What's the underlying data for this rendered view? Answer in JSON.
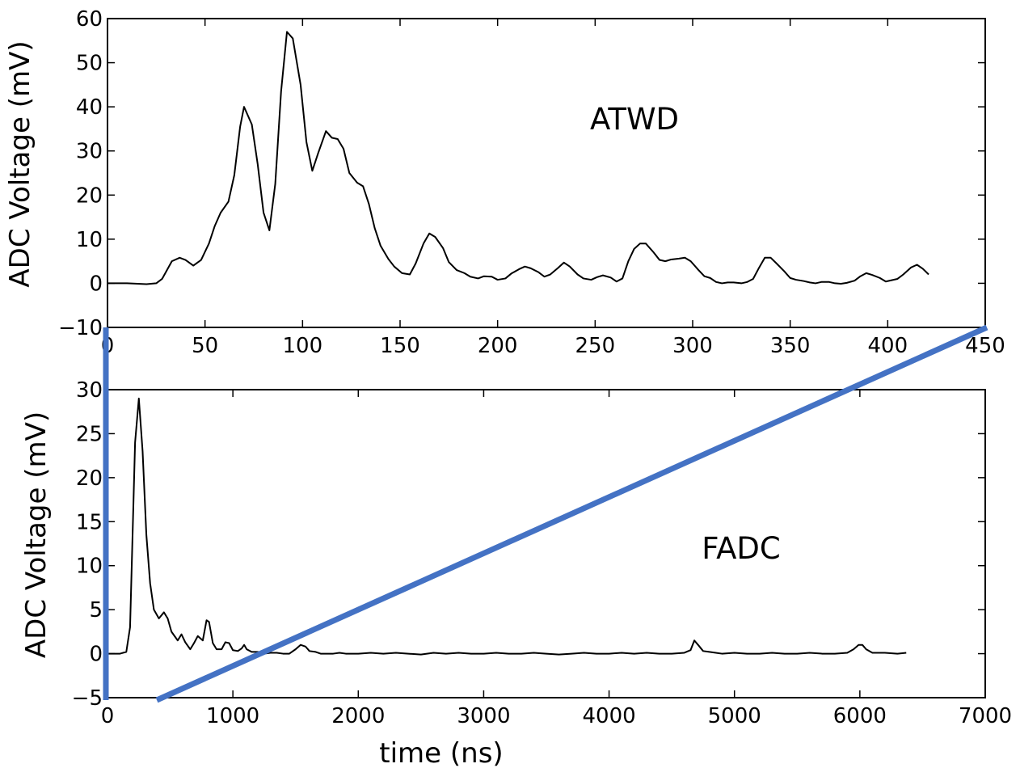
{
  "chart_data": [
    {
      "type": "line",
      "annotation": "ATWD",
      "ylabel": "ADC Voltage (mV)",
      "x": [
        0,
        10,
        20,
        25,
        28,
        33,
        37,
        40,
        44,
        48,
        52,
        55,
        58,
        62,
        65,
        68,
        70,
        74,
        77,
        80,
        83,
        86,
        89,
        92,
        95,
        99,
        102,
        105,
        108,
        112,
        115,
        118,
        121,
        124,
        128,
        131,
        134,
        137,
        140,
        144,
        147,
        151,
        155,
        158,
        162,
        165,
        168,
        172,
        175,
        179,
        183,
        186,
        190,
        193,
        197,
        200,
        204,
        207,
        211,
        214,
        217,
        221,
        224,
        227,
        231,
        234,
        237,
        241,
        244,
        248,
        251,
        254,
        258,
        261,
        264,
        267,
        270,
        273,
        276,
        280,
        283,
        286,
        289,
        293,
        296,
        299,
        303,
        306,
        309,
        312,
        315,
        318,
        321,
        325,
        328,
        331,
        334,
        337,
        340,
        343,
        347,
        350,
        353,
        357,
        360,
        363,
        366,
        370,
        373,
        376,
        379,
        383,
        386,
        389,
        392,
        396,
        399,
        402,
        405,
        408,
        412,
        415,
        418,
        421
      ],
      "series": [
        {
          "color": "#000000",
          "values": [
            0,
            0,
            -0.2,
            0,
            1,
            5,
            5.8,
            5.3,
            4,
            5.3,
            9,
            13,
            16,
            18.5,
            24.5,
            35.5,
            40,
            36,
            27,
            16,
            12,
            22.5,
            43.5,
            57,
            55.5,
            45,
            32,
            25.5,
            29.5,
            34.5,
            33,
            32.7,
            30.5,
            25,
            22.8,
            22,
            18,
            12.5,
            8.5,
            5.5,
            3.8,
            2.3,
            2,
            4.5,
            9,
            11.3,
            10.5,
            8,
            4.8,
            3,
            2.3,
            1.5,
            1.1,
            1.6,
            1.5,
            0.8,
            1.1,
            2.2,
            3.2,
            3.8,
            3.4,
            2.5,
            1.5,
            2,
            3.5,
            4.7,
            3.8,
            2,
            1.1,
            0.8,
            1.4,
            1.8,
            1.3,
            0.4,
            1.1,
            5,
            7.8,
            9,
            9,
            7,
            5.3,
            5,
            5.4,
            5.6,
            5.8,
            5,
            3,
            1.6,
            1.2,
            0.3,
            0,
            0.2,
            0.2,
            0,
            0.3,
            1,
            3.5,
            5.8,
            5.8,
            4.5,
            2.7,
            1.2,
            0.8,
            0.5,
            0.2,
            0,
            0.3,
            0.3,
            0,
            -0.1,
            0.1,
            0.6,
            1.6,
            2.3,
            1.9,
            1.2,
            0.4,
            0.7,
            1,
            2,
            3.6,
            4.2,
            3.3,
            2
          ]
        }
      ],
      "xlim": [
        0,
        450
      ],
      "ylim": [
        -10,
        60
      ],
      "xticks": [
        0,
        50,
        100,
        150,
        200,
        250,
        300,
        350,
        400,
        450
      ],
      "yticks": [
        {
          "value": -10,
          "label": "−10"
        },
        0,
        10,
        20,
        30,
        40,
        50,
        60
      ]
    },
    {
      "type": "line",
      "annotation": "FADC",
      "ylabel": "ADC Voltage (mV)",
      "xlabel": "time (ns)",
      "x": [
        0,
        100,
        150,
        180,
        220,
        250,
        280,
        310,
        340,
        370,
        410,
        450,
        480,
        510,
        560,
        590,
        620,
        660,
        690,
        720,
        760,
        790,
        810,
        840,
        870,
        910,
        940,
        970,
        1000,
        1040,
        1070,
        1090,
        1110,
        1150,
        1200,
        1250,
        1300,
        1350,
        1400,
        1450,
        1500,
        1540,
        1580,
        1610,
        1660,
        1700,
        1800,
        1850,
        1900,
        2000,
        2100,
        2200,
        2300,
        2400,
        2500,
        2600,
        2700,
        2800,
        2900,
        3000,
        3100,
        3200,
        3300,
        3400,
        3500,
        3600,
        3700,
        3800,
        3900,
        4000,
        4100,
        4200,
        4300,
        4400,
        4500,
        4600,
        4650,
        4680,
        4710,
        4750,
        4800,
        4900,
        5000,
        5100,
        5200,
        5300,
        5400,
        5500,
        5600,
        5700,
        5800,
        5900,
        5950,
        5990,
        6020,
        6050,
        6100,
        6200,
        6300,
        6370
      ],
      "series": [
        {
          "color": "#000000",
          "values": [
            0,
            0,
            0.2,
            3,
            24,
            29,
            23,
            13.5,
            8,
            5,
            4,
            4.7,
            4,
            2.5,
            1.5,
            2.2,
            1.3,
            0.5,
            1.2,
            2,
            1.5,
            3.8,
            3.6,
            1.2,
            0.5,
            0.5,
            1.3,
            1.2,
            0.4,
            0.3,
            0.6,
            1,
            0.5,
            0.2,
            0.2,
            0,
            0.1,
            0.1,
            0,
            0,
            0.5,
            1,
            0.8,
            0.3,
            0.2,
            0,
            0,
            0.1,
            0,
            0,
            0.1,
            0,
            0.1,
            0,
            -0.1,
            0.1,
            0,
            0.1,
            0,
            0,
            0.1,
            0,
            0,
            0.1,
            0,
            -0.1,
            0,
            0.1,
            0,
            0,
            0.1,
            0,
            0.1,
            0,
            0,
            0.1,
            0.4,
            1.5,
            1,
            0.3,
            0.2,
            0,
            0.1,
            0,
            0,
            0.1,
            0,
            0,
            0.1,
            0,
            0,
            0.1,
            0.5,
            1,
            1,
            0.5,
            0.1,
            0.1,
            0,
            0.1
          ]
        }
      ],
      "xlim": [
        0,
        7000
      ],
      "ylim": [
        -5,
        30
      ],
      "xticks": [
        0,
        1000,
        2000,
        3000,
        4000,
        5000,
        6000,
        7000
      ],
      "yticks": [
        {
          "value": -5,
          "label": "−5"
        },
        0,
        5,
        10,
        15,
        20,
        25,
        30
      ]
    }
  ]
}
